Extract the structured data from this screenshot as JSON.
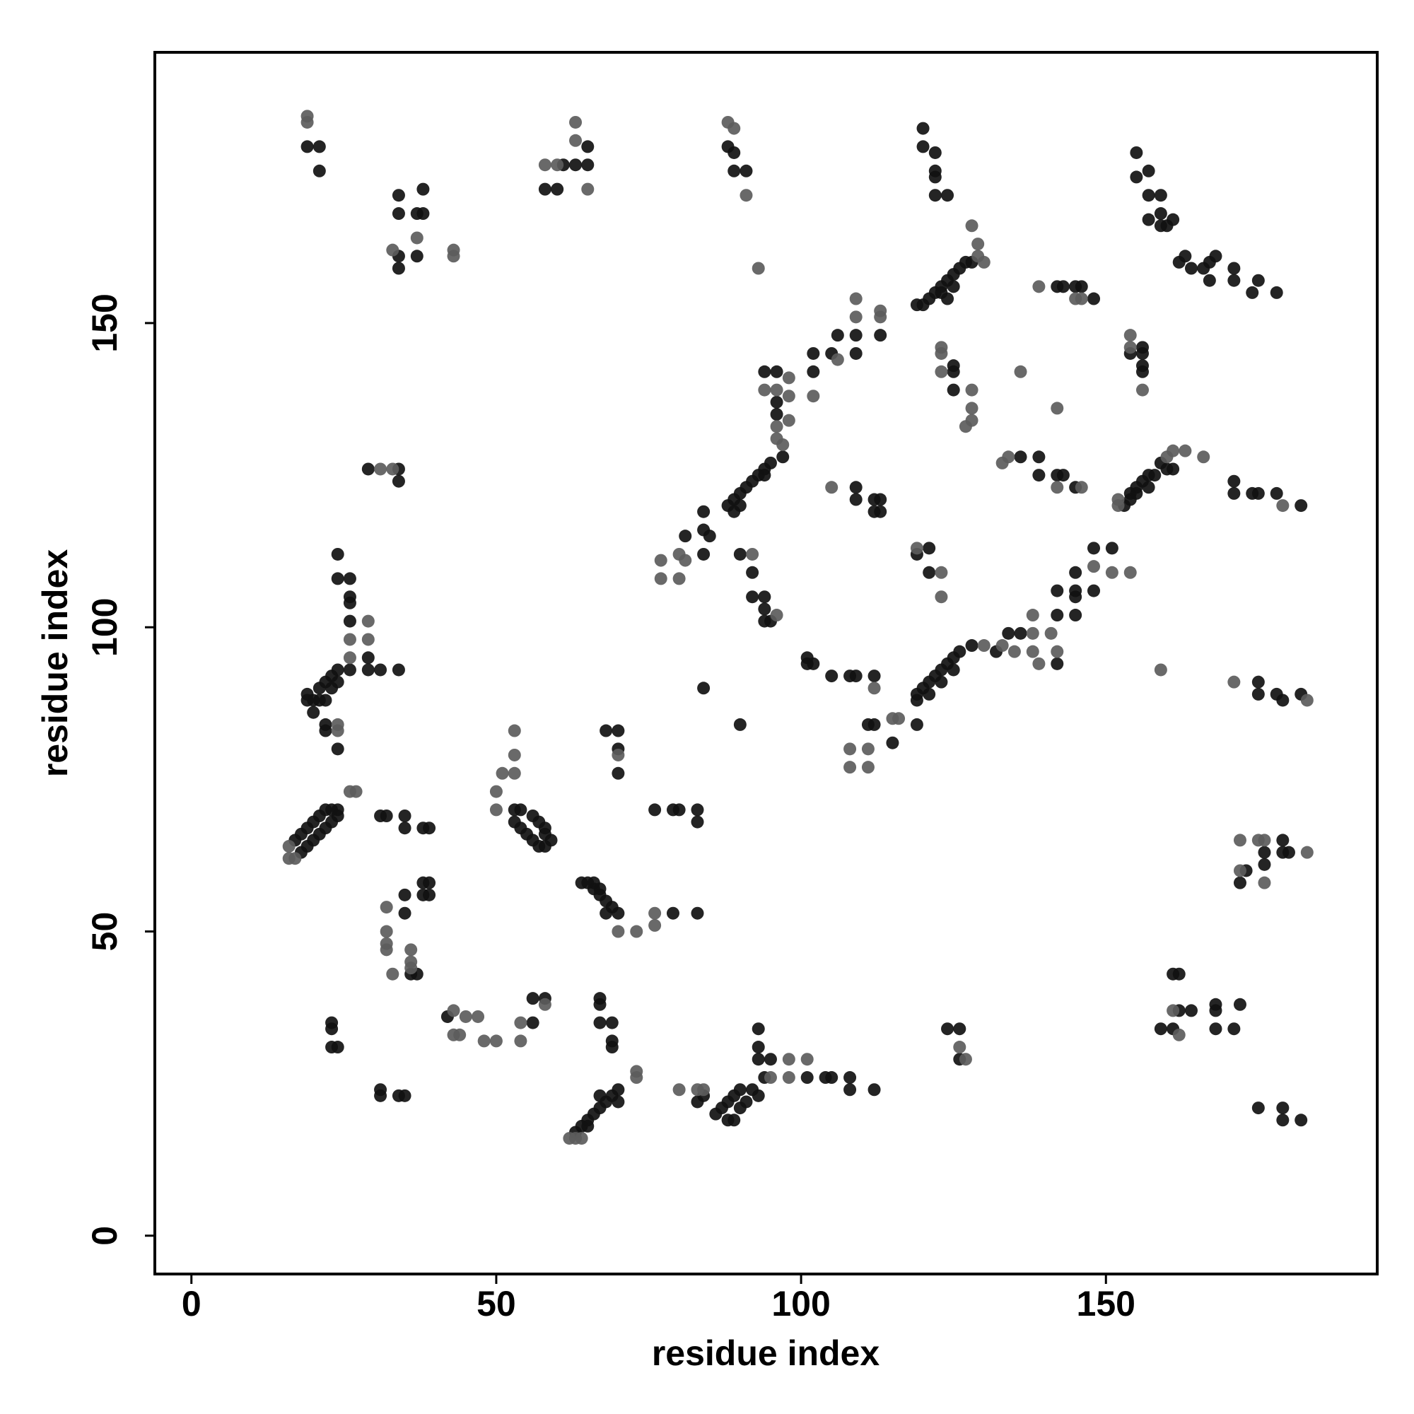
{
  "chart_data": {
    "type": "scatter",
    "xlabel": "residue index",
    "ylabel": "residue index",
    "xlim": [
      -6,
      194.5
    ],
    "ylim": [
      -6.3,
      194.5
    ],
    "xticks": [
      0,
      50,
      100,
      150
    ],
    "yticks": [
      0,
      50,
      100,
      150
    ],
    "series": [
      {
        "color": "#111111",
        "x": [
          19,
          21,
          21,
          34,
          34,
          38,
          37,
          38,
          34,
          37,
          34,
          61,
          63,
          65,
          65,
          58,
          60,
          88,
          89,
          89,
          91,
          120,
          120,
          122,
          122,
          122,
          122,
          124,
          155,
          155,
          157,
          157,
          159,
          157,
          159,
          159,
          161,
          160,
          162,
          163,
          164,
          166,
          167,
          168,
          167,
          171,
          171,
          175,
          174,
          178,
          119,
          121,
          120,
          122,
          123,
          124,
          125,
          126,
          127,
          128,
          124,
          123,
          125,
          142,
          143,
          145,
          146,
          148,
          94,
          96,
          96,
          96,
          97,
          95,
          94,
          93,
          92,
          91,
          90,
          89,
          88,
          89,
          90,
          94,
          102,
          102,
          105,
          106,
          109,
          109,
          113,
          84,
          84,
          85,
          81,
          84,
          90,
          92,
          92,
          94,
          94,
          95,
          94,
          84,
          90,
          109,
          109,
          112,
          113,
          112,
          113,
          121,
          121,
          119,
          125,
          125,
          125,
          156,
          156,
          156,
          156,
          154,
          136,
          139,
          139,
          143,
          142,
          145,
          153,
          154,
          155,
          156,
          157,
          158,
          159,
          160,
          161,
          155,
          157,
          154,
          171,
          171,
          174,
          175,
          178,
          182,
          148,
          151,
          145,
          145,
          145,
          148,
          142,
          142,
          145,
          136,
          134,
          142,
          132,
          128,
          126,
          125,
          124,
          123,
          122,
          121,
          120,
          119,
          119,
          121,
          123,
          125,
          119,
          101,
          101,
          102,
          105,
          108,
          109,
          112,
          112,
          111,
          115,
          175,
          175,
          178,
          179,
          182,
          179,
          173,
          176,
          172,
          176,
          179,
          180,
          161,
          162,
          162,
          164,
          168,
          168,
          172,
          159,
          161,
          168,
          171,
          175,
          179,
          179,
          182,
          124,
          126,
          126,
          93,
          93,
          93,
          95,
          94,
          101,
          104,
          105,
          108,
          108,
          112,
          92,
          90,
          89,
          88,
          87,
          86,
          88,
          89,
          90,
          91,
          93,
          84,
          83,
          63,
          64,
          65,
          66,
          67,
          68,
          69,
          70,
          70,
          67,
          65,
          67,
          67,
          67,
          69,
          69,
          69,
          58,
          56,
          56,
          42,
          23,
          23,
          23,
          24,
          31,
          31,
          34,
          35,
          35,
          35,
          36,
          37,
          38,
          39,
          38,
          39,
          17,
          18,
          19,
          20,
          21,
          22,
          23,
          24,
          18,
          19,
          20,
          21,
          22,
          23,
          24,
          31,
          32,
          35,
          35,
          38,
          39,
          19,
          20,
          21,
          22,
          23,
          24,
          20,
          22,
          22,
          24,
          19,
          21,
          22,
          23,
          24,
          24,
          24,
          26,
          26,
          26,
          26,
          26,
          29,
          29,
          31,
          34,
          29,
          34,
          34,
          53,
          54,
          53,
          54,
          55,
          56,
          57,
          58,
          59,
          56,
          57,
          58,
          58,
          64,
          65,
          66,
          67,
          68,
          69,
          70,
          68,
          66,
          67,
          79,
          83,
          68,
          70,
          70,
          70,
          76,
          79,
          80,
          83,
          83
        ],
        "values": [
          179,
          179,
          175,
          171,
          168,
          172,
          168,
          168,
          161,
          161,
          159,
          176,
          176,
          179,
          176,
          172,
          172,
          179,
          178,
          175,
          175,
          182,
          179,
          178,
          175,
          174,
          171,
          171,
          178,
          174,
          175,
          171,
          171,
          167,
          168,
          166,
          167,
          166,
          160,
          161,
          159,
          159,
          160,
          161,
          157,
          159,
          157,
          157,
          155,
          155,
          153,
          154,
          153,
          155,
          156,
          157,
          158,
          159,
          160,
          160,
          154,
          155,
          156,
          156,
          156,
          156,
          156,
          154,
          142,
          142,
          137,
          135,
          128,
          127,
          126,
          125,
          124,
          123,
          122,
          121,
          120,
          119,
          120,
          125,
          142,
          145,
          145,
          148,
          148,
          145,
          148,
          119,
          116,
          115,
          115,
          112,
          112,
          109,
          105,
          105,
          103,
          101,
          101,
          90,
          84,
          123,
          121,
          121,
          121,
          119,
          119,
          113,
          109,
          112,
          143,
          142,
          139,
          146,
          145,
          143,
          142,
          145,
          128,
          128,
          125,
          125,
          125,
          123,
          120,
          122,
          123,
          124,
          125,
          125,
          127,
          126,
          126,
          122,
          123,
          121,
          124,
          122,
          122,
          122,
          122,
          120,
          113,
          113,
          109,
          106,
          105,
          106,
          106,
          102,
          102,
          99,
          99,
          94,
          96,
          97,
          96,
          95,
          94,
          93,
          92,
          91,
          90,
          89,
          88,
          89,
          91,
          93,
          84,
          95,
          94,
          94,
          92,
          92,
          92,
          92,
          84,
          84,
          81,
          91,
          89,
          89,
          88,
          89,
          65,
          60,
          61,
          58,
          63,
          63,
          63,
          43,
          43,
          37,
          37,
          38,
          37,
          38,
          34,
          34,
          34,
          34,
          21,
          21,
          19,
          19,
          34,
          34,
          29,
          34,
          31,
          29,
          29,
          26,
          26,
          26,
          26,
          26,
          24,
          24,
          24,
          24,
          23,
          22,
          21,
          20,
          19,
          19,
          21,
          22,
          23,
          23,
          22,
          17,
          18,
          19,
          20,
          21,
          22,
          23,
          24,
          22,
          23,
          18,
          39,
          38,
          35,
          35,
          32,
          31,
          39,
          39,
          35,
          36,
          35,
          34,
          31,
          31,
          24,
          23,
          23,
          23,
          53,
          56,
          43,
          43,
          56,
          56,
          58,
          58,
          65,
          66,
          67,
          68,
          69,
          70,
          70,
          70,
          63,
          64,
          65,
          66,
          67,
          68,
          69,
          69,
          69,
          69,
          67,
          67,
          67,
          89,
          88,
          90,
          91,
          92,
          93,
          86,
          84,
          83,
          80,
          88,
          88,
          88,
          90,
          91,
          112,
          108,
          108,
          105,
          104,
          101,
          93,
          95,
          93,
          93,
          93,
          126,
          126,
          124,
          70,
          70,
          68,
          67,
          66,
          65,
          64,
          64,
          65,
          69,
          68,
          67,
          66,
          58,
          58,
          57,
          56,
          55,
          54,
          53,
          53,
          58,
          57,
          53,
          53,
          83,
          83,
          80,
          76,
          70,
          70,
          70,
          70,
          68
        ]
      },
      {
        "color": "#5c5c5c",
        "x": [
          19,
          19,
          58,
          60,
          63,
          63,
          65,
          88,
          89,
          91,
          93,
          43,
          43,
          37,
          33,
          129,
          128,
          129,
          130,
          139,
          145,
          146,
          94,
          96,
          96,
          96,
          97,
          98,
          98,
          98,
          102,
          106,
          109,
          109,
          113,
          113,
          77,
          77,
          80,
          80,
          81,
          92,
          96,
          105,
          119,
          123,
          123,
          123,
          123,
          123,
          128,
          128,
          128,
          127,
          136,
          142,
          154,
          154,
          156,
          133,
          134,
          142,
          146,
          152,
          152,
          161,
          163,
          166,
          160,
          179,
          148,
          151,
          154,
          138,
          141,
          142,
          138,
          139,
          135,
          133,
          130,
          138,
          159,
          171,
          183,
          112,
          108,
          108,
          111,
          111,
          115,
          116,
          172,
          175,
          176,
          172,
          176,
          183,
          162,
          161,
          126,
          127,
          98,
          101,
          98,
          95,
          84,
          83,
          80,
          73,
          73,
          62,
          63,
          64,
          58,
          54,
          54,
          50,
          48,
          47,
          45,
          43,
          43,
          44,
          32,
          32,
          32,
          32,
          36,
          36,
          36,
          33,
          16,
          17,
          16,
          26,
          27,
          24,
          24,
          26,
          26,
          29,
          29,
          31,
          33,
          53,
          53,
          53,
          51,
          50,
          50,
          70,
          73,
          76,
          76,
          70
        ],
        "values": [
          184,
          183,
          176,
          176,
          183,
          180,
          172,
          183,
          182,
          171,
          159,
          161,
          162,
          164,
          162,
          163,
          166,
          161,
          160,
          156,
          154,
          154,
          139,
          139,
          133,
          131,
          130,
          141,
          138,
          134,
          138,
          144,
          154,
          151,
          152,
          151,
          111,
          108,
          108,
          112,
          111,
          112,
          102,
          123,
          113,
          109,
          105,
          146,
          145,
          142,
          139,
          136,
          134,
          133,
          142,
          136,
          148,
          146,
          139,
          127,
          128,
          123,
          123,
          120,
          121,
          129,
          129,
          128,
          128,
          120,
          110,
          109,
          109,
          102,
          99,
          96,
          96,
          94,
          96,
          97,
          97,
          99,
          93,
          91,
          88,
          90,
          80,
          77,
          77,
          80,
          85,
          85,
          65,
          65,
          65,
          60,
          58,
          63,
          33,
          37,
          31,
          29,
          29,
          29,
          26,
          26,
          24,
          24,
          24,
          27,
          26,
          16,
          16,
          16,
          38,
          35,
          32,
          32,
          32,
          36,
          36,
          37,
          33,
          33,
          54,
          50,
          48,
          47,
          47,
          45,
          44,
          43,
          62,
          62,
          64,
          73,
          73,
          84,
          83,
          98,
          95,
          101,
          98,
          126,
          126,
          83,
          79,
          76,
          76,
          73,
          70,
          50,
          50,
          51,
          53,
          79
        ]
      }
    ]
  }
}
